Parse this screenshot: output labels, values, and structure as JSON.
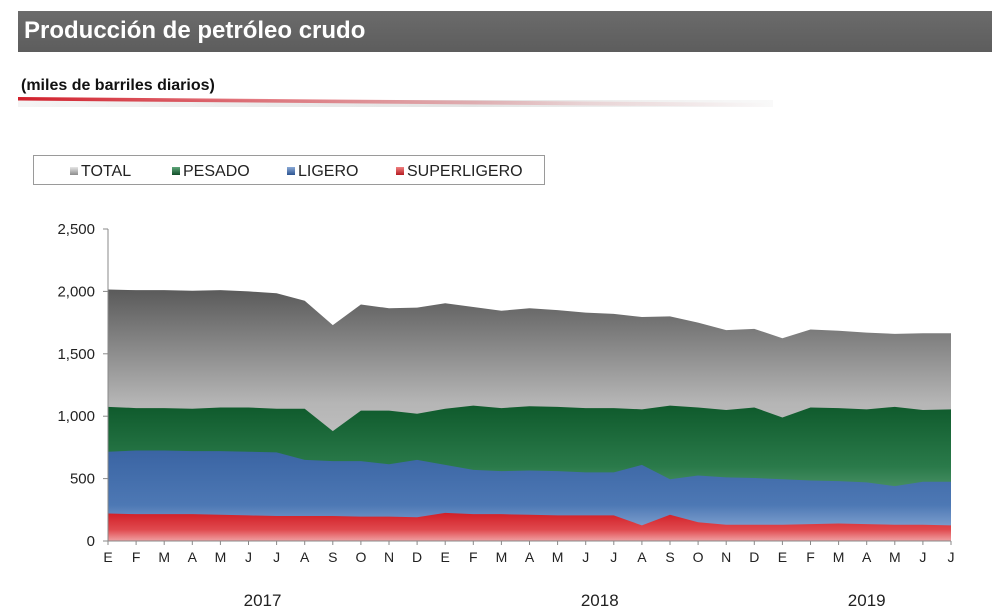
{
  "header": {
    "title": "Producción de petróleo crudo"
  },
  "subtitle": "(miles de barriles diarios)",
  "colors": {
    "total": "#b0b0b0",
    "pesado": "#1b6b3a",
    "ligero": "#3f6aa8",
    "superligero": "#d42a2e",
    "header_bg": "#636363"
  },
  "chart_data": {
    "type": "area",
    "stacked": true,
    "ylim": [
      0,
      2500
    ],
    "yticks": [
      0,
      500,
      1000,
      1500,
      2000,
      2500
    ],
    "ytick_labels": [
      "0",
      "500",
      "1,000",
      "1,500",
      "2,000",
      "2,500"
    ],
    "categories": [
      "E",
      "F",
      "M",
      "A",
      "M",
      "J",
      "J",
      "A",
      "S",
      "O",
      "N",
      "D",
      "E",
      "F",
      "M",
      "A",
      "M",
      "J",
      "J",
      "A",
      "S",
      "O",
      "N",
      "D",
      "E",
      "F",
      "M",
      "A",
      "M",
      "J",
      "J"
    ],
    "years": [
      {
        "label": "2017",
        "start": 0,
        "end": 11
      },
      {
        "label": "2018",
        "start": 12,
        "end": 23
      },
      {
        "label": "2019",
        "start": 24,
        "end": 30
      }
    ],
    "legend_position": "top-left",
    "series": [
      {
        "name": "TOTAL",
        "key": "total",
        "values": [
          2015,
          2010,
          2010,
          2005,
          2010,
          2000,
          1985,
          1925,
          1730,
          1895,
          1865,
          1870,
          1905,
          1875,
          1845,
          1865,
          1850,
          1830,
          1820,
          1795,
          1800,
          1750,
          1690,
          1700,
          1625,
          1695,
          1685,
          1670,
          1660,
          1665,
          1665
        ]
      },
      {
        "name": "PESADO",
        "key": "pesado",
        "values": [
          1075,
          1065,
          1065,
          1060,
          1070,
          1070,
          1060,
          1060,
          880,
          1045,
          1045,
          1020,
          1060,
          1085,
          1065,
          1080,
          1075,
          1065,
          1065,
          1055,
          1085,
          1070,
          1050,
          1070,
          990,
          1070,
          1065,
          1055,
          1075,
          1050,
          1055
        ]
      },
      {
        "name": "LIGERO",
        "key": "ligero",
        "values": [
          715,
          725,
          725,
          720,
          720,
          715,
          710,
          650,
          640,
          640,
          615,
          650,
          610,
          570,
          560,
          565,
          560,
          550,
          550,
          610,
          495,
          525,
          510,
          505,
          495,
          485,
          480,
          470,
          440,
          475,
          475
        ]
      },
      {
        "name": "SUPERLIGERO",
        "key": "superligero",
        "values": [
          220,
          215,
          215,
          215,
          210,
          205,
          200,
          200,
          200,
          195,
          195,
          190,
          225,
          215,
          215,
          210,
          205,
          205,
          205,
          125,
          210,
          150,
          130,
          130,
          130,
          135,
          140,
          135,
          130,
          130,
          125
        ]
      }
    ]
  }
}
